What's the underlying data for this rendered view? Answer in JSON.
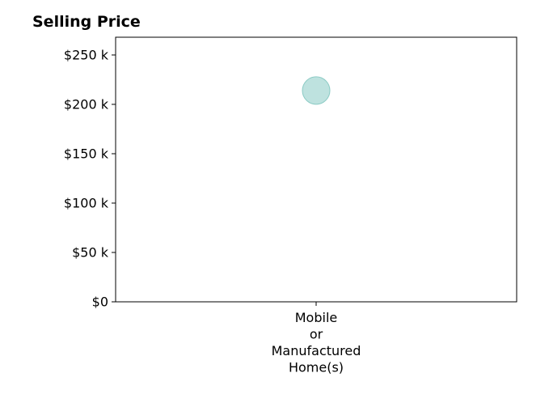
{
  "chart_data": {
    "type": "scatter",
    "title": "Selling Price",
    "xlabel": "",
    "ylabel": "",
    "categories": [
      "Mobile\nor\nManufactured\nHome(s)"
    ],
    "series": [
      {
        "values": [
          214000
        ]
      }
    ],
    "ylim": [
      0,
      268000
    ],
    "yticks": [
      0,
      50000,
      100000,
      150000,
      200000,
      250000
    ],
    "ytick_labels": [
      "$0",
      "$50 k",
      "$100 k",
      "$150 k",
      "$200 k",
      "$250 k"
    ],
    "grid": false,
    "legend": "none",
    "marker_color": "#a8d8d4",
    "marker_edge_color": "#8ccbc5",
    "marker_opacity": 0.75
  }
}
